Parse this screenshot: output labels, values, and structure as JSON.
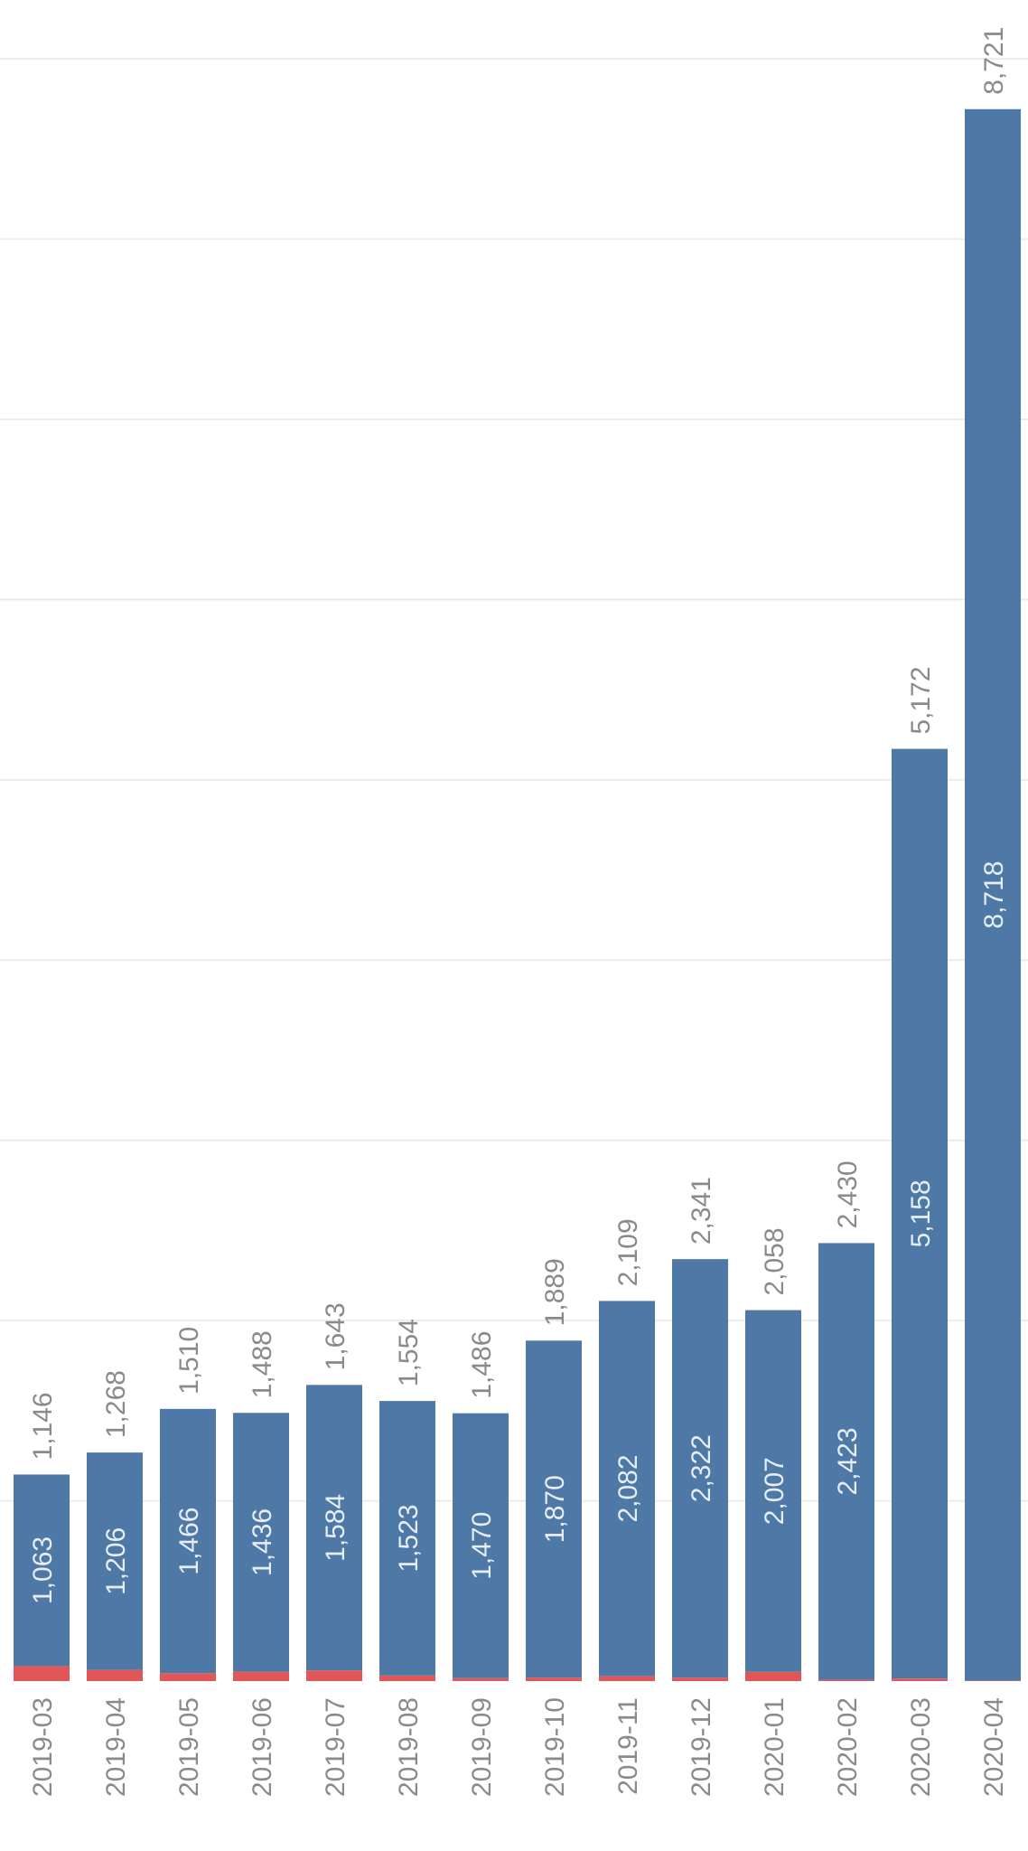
{
  "chart_data": {
    "type": "bar",
    "stacked": true,
    "orientation": "vertical",
    "categories": [
      "2019-03",
      "2019-04",
      "2019-05",
      "2019-06",
      "2019-07",
      "2019-08",
      "2019-09",
      "2019-10",
      "2019-11",
      "2019-12",
      "2020-01",
      "2020-02",
      "2020-03",
      "2020-04"
    ],
    "totals": [
      1146,
      1268,
      1510,
      1488,
      1643,
      1554,
      1486,
      1889,
      2109,
      2341,
      2058,
      2430,
      5172,
      8721
    ],
    "series": [
      {
        "values": [
          1063,
          1206,
          1466,
          1436,
          1584,
          1523,
          1470,
          1870,
          2082,
          2322,
          2007,
          2423,
          5158,
          8718
        ],
        "color": "#4e79a7"
      },
      {
        "values": [
          83,
          62,
          44,
          52,
          59,
          31,
          16,
          19,
          27,
          19,
          51,
          7,
          14,
          3
        ],
        "color": "#e15759"
      }
    ],
    "ylim": [
      0,
      9000
    ],
    "grid": true,
    "title": "",
    "xlabel": "",
    "ylabel": ""
  }
}
